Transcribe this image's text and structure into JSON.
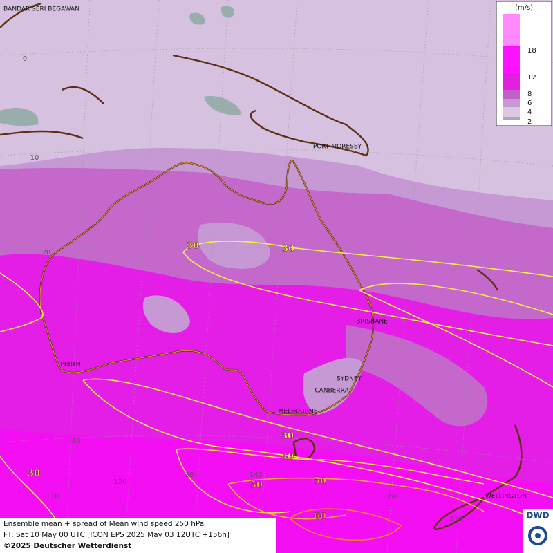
{
  "legend": {
    "unit": "(m/s)",
    "levels": [
      2,
      4,
      6,
      8,
      12,
      18
    ]
  },
  "cities": [
    "BANDAR SERI BEGAWAN",
    "PORT MORESBY",
    "BRISBANE",
    "PERTH",
    "SYDNEY",
    "CANBERRA",
    "MELBOURNE",
    "WELLINGTON"
  ],
  "graticule_labels": [
    0,
    10,
    20,
    40,
    110,
    120,
    30,
    140,
    160,
    170
  ],
  "contour_labels": [
    30,
    30,
    30,
    40,
    50,
    50,
    60,
    30
  ],
  "footer": {
    "line1": "Ensemble mean + spread of Mean wind speed 250 hPa",
    "line2": "FT: Sat 10 May 00 UTC [ICON EPS 2025 May 03 12UTC +156h]",
    "line3": "©2025 Deutscher Wetterdienst"
  },
  "logo": "DWD"
}
